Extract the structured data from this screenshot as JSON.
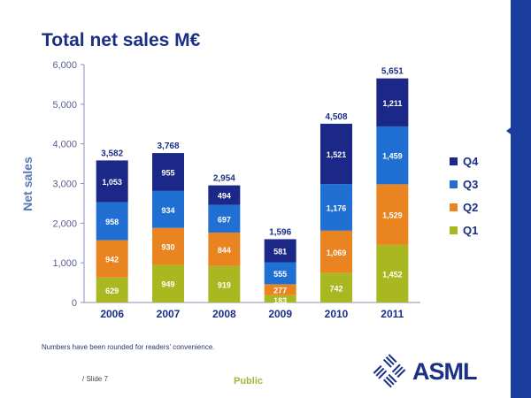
{
  "title": "Total net sales M€",
  "note": "Numbers have been rounded for readers’ convenience.",
  "slide": "/ Slide 7",
  "classification": "Public",
  "logo": "ASML",
  "chart_data": {
    "type": "bar",
    "stacked": true,
    "title": "Total net sales M€",
    "ylabel": "Net sales",
    "xlabel": "",
    "ylim": [
      0,
      6000
    ],
    "yticks": [
      "0",
      "1,000",
      "2,000",
      "3,000",
      "4,000",
      "5,000",
      "6,000"
    ],
    "categories": [
      "2006",
      "2007",
      "2008",
      "2009",
      "2010",
      "2011"
    ],
    "series": [
      {
        "name": "Q1",
        "color": "#a9b820",
        "values": [
          629,
          949,
          919,
          183,
          742,
          1452
        ]
      },
      {
        "name": "Q2",
        "color": "#ea8420",
        "values": [
          942,
          930,
          844,
          277,
          1069,
          1529
        ]
      },
      {
        "name": "Q3",
        "color": "#2070d4",
        "values": [
          958,
          934,
          697,
          555,
          1176,
          1459
        ]
      },
      {
        "name": "Q4",
        "color": "#1b2887",
        "values": [
          1053,
          955,
          494,
          581,
          1521,
          1211
        ]
      }
    ],
    "totals": [
      3582,
      3768,
      2954,
      1596,
      4508,
      5651
    ],
    "legend": "right"
  }
}
